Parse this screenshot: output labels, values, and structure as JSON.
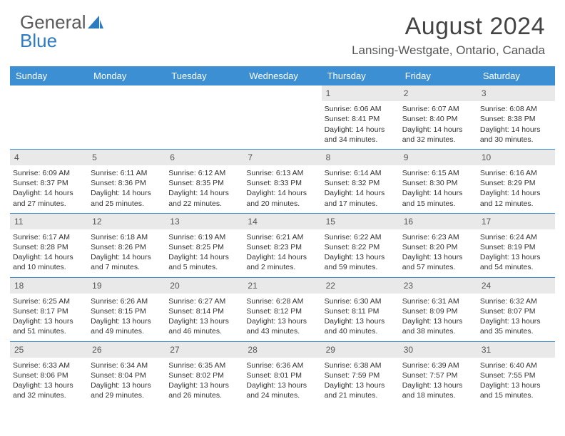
{
  "logo": {
    "word1": "General",
    "word2": "Blue"
  },
  "header": {
    "monthTitle": "August 2024",
    "location": "Lansing-Westgate, Ontario, Canada"
  },
  "colors": {
    "headerBar": "#3d8fd3",
    "dayNumBg": "#e9e9e9",
    "ruleLine": "#3d8fd3",
    "logoGray": "#5a5a5a",
    "logoBlue": "#2d7bc0"
  },
  "dayNames": [
    "Sunday",
    "Monday",
    "Tuesday",
    "Wednesday",
    "Thursday",
    "Friday",
    "Saturday"
  ],
  "weeks": [
    [
      {
        "empty": true
      },
      {
        "empty": true
      },
      {
        "empty": true
      },
      {
        "empty": true
      },
      {
        "day": "1",
        "sunrise": "Sunrise: 6:06 AM",
        "sunset": "Sunset: 8:41 PM",
        "daylight1": "Daylight: 14 hours",
        "daylight2": "and 34 minutes."
      },
      {
        "day": "2",
        "sunrise": "Sunrise: 6:07 AM",
        "sunset": "Sunset: 8:40 PM",
        "daylight1": "Daylight: 14 hours",
        "daylight2": "and 32 minutes."
      },
      {
        "day": "3",
        "sunrise": "Sunrise: 6:08 AM",
        "sunset": "Sunset: 8:38 PM",
        "daylight1": "Daylight: 14 hours",
        "daylight2": "and 30 minutes."
      }
    ],
    [
      {
        "day": "4",
        "sunrise": "Sunrise: 6:09 AM",
        "sunset": "Sunset: 8:37 PM",
        "daylight1": "Daylight: 14 hours",
        "daylight2": "and 27 minutes."
      },
      {
        "day": "5",
        "sunrise": "Sunrise: 6:11 AM",
        "sunset": "Sunset: 8:36 PM",
        "daylight1": "Daylight: 14 hours",
        "daylight2": "and 25 minutes."
      },
      {
        "day": "6",
        "sunrise": "Sunrise: 6:12 AM",
        "sunset": "Sunset: 8:35 PM",
        "daylight1": "Daylight: 14 hours",
        "daylight2": "and 22 minutes."
      },
      {
        "day": "7",
        "sunrise": "Sunrise: 6:13 AM",
        "sunset": "Sunset: 8:33 PM",
        "daylight1": "Daylight: 14 hours",
        "daylight2": "and 20 minutes."
      },
      {
        "day": "8",
        "sunrise": "Sunrise: 6:14 AM",
        "sunset": "Sunset: 8:32 PM",
        "daylight1": "Daylight: 14 hours",
        "daylight2": "and 17 minutes."
      },
      {
        "day": "9",
        "sunrise": "Sunrise: 6:15 AM",
        "sunset": "Sunset: 8:30 PM",
        "daylight1": "Daylight: 14 hours",
        "daylight2": "and 15 minutes."
      },
      {
        "day": "10",
        "sunrise": "Sunrise: 6:16 AM",
        "sunset": "Sunset: 8:29 PM",
        "daylight1": "Daylight: 14 hours",
        "daylight2": "and 12 minutes."
      }
    ],
    [
      {
        "day": "11",
        "sunrise": "Sunrise: 6:17 AM",
        "sunset": "Sunset: 8:28 PM",
        "daylight1": "Daylight: 14 hours",
        "daylight2": "and 10 minutes."
      },
      {
        "day": "12",
        "sunrise": "Sunrise: 6:18 AM",
        "sunset": "Sunset: 8:26 PM",
        "daylight1": "Daylight: 14 hours",
        "daylight2": "and 7 minutes."
      },
      {
        "day": "13",
        "sunrise": "Sunrise: 6:19 AM",
        "sunset": "Sunset: 8:25 PM",
        "daylight1": "Daylight: 14 hours",
        "daylight2": "and 5 minutes."
      },
      {
        "day": "14",
        "sunrise": "Sunrise: 6:21 AM",
        "sunset": "Sunset: 8:23 PM",
        "daylight1": "Daylight: 14 hours",
        "daylight2": "and 2 minutes."
      },
      {
        "day": "15",
        "sunrise": "Sunrise: 6:22 AM",
        "sunset": "Sunset: 8:22 PM",
        "daylight1": "Daylight: 13 hours",
        "daylight2": "and 59 minutes."
      },
      {
        "day": "16",
        "sunrise": "Sunrise: 6:23 AM",
        "sunset": "Sunset: 8:20 PM",
        "daylight1": "Daylight: 13 hours",
        "daylight2": "and 57 minutes."
      },
      {
        "day": "17",
        "sunrise": "Sunrise: 6:24 AM",
        "sunset": "Sunset: 8:19 PM",
        "daylight1": "Daylight: 13 hours",
        "daylight2": "and 54 minutes."
      }
    ],
    [
      {
        "day": "18",
        "sunrise": "Sunrise: 6:25 AM",
        "sunset": "Sunset: 8:17 PM",
        "daylight1": "Daylight: 13 hours",
        "daylight2": "and 51 minutes."
      },
      {
        "day": "19",
        "sunrise": "Sunrise: 6:26 AM",
        "sunset": "Sunset: 8:15 PM",
        "daylight1": "Daylight: 13 hours",
        "daylight2": "and 49 minutes."
      },
      {
        "day": "20",
        "sunrise": "Sunrise: 6:27 AM",
        "sunset": "Sunset: 8:14 PM",
        "daylight1": "Daylight: 13 hours",
        "daylight2": "and 46 minutes."
      },
      {
        "day": "21",
        "sunrise": "Sunrise: 6:28 AM",
        "sunset": "Sunset: 8:12 PM",
        "daylight1": "Daylight: 13 hours",
        "daylight2": "and 43 minutes."
      },
      {
        "day": "22",
        "sunrise": "Sunrise: 6:30 AM",
        "sunset": "Sunset: 8:11 PM",
        "daylight1": "Daylight: 13 hours",
        "daylight2": "and 40 minutes."
      },
      {
        "day": "23",
        "sunrise": "Sunrise: 6:31 AM",
        "sunset": "Sunset: 8:09 PM",
        "daylight1": "Daylight: 13 hours",
        "daylight2": "and 38 minutes."
      },
      {
        "day": "24",
        "sunrise": "Sunrise: 6:32 AM",
        "sunset": "Sunset: 8:07 PM",
        "daylight1": "Daylight: 13 hours",
        "daylight2": "and 35 minutes."
      }
    ],
    [
      {
        "day": "25",
        "sunrise": "Sunrise: 6:33 AM",
        "sunset": "Sunset: 8:06 PM",
        "daylight1": "Daylight: 13 hours",
        "daylight2": "and 32 minutes."
      },
      {
        "day": "26",
        "sunrise": "Sunrise: 6:34 AM",
        "sunset": "Sunset: 8:04 PM",
        "daylight1": "Daylight: 13 hours",
        "daylight2": "and 29 minutes."
      },
      {
        "day": "27",
        "sunrise": "Sunrise: 6:35 AM",
        "sunset": "Sunset: 8:02 PM",
        "daylight1": "Daylight: 13 hours",
        "daylight2": "and 26 minutes."
      },
      {
        "day": "28",
        "sunrise": "Sunrise: 6:36 AM",
        "sunset": "Sunset: 8:01 PM",
        "daylight1": "Daylight: 13 hours",
        "daylight2": "and 24 minutes."
      },
      {
        "day": "29",
        "sunrise": "Sunrise: 6:38 AM",
        "sunset": "Sunset: 7:59 PM",
        "daylight1": "Daylight: 13 hours",
        "daylight2": "and 21 minutes."
      },
      {
        "day": "30",
        "sunrise": "Sunrise: 6:39 AM",
        "sunset": "Sunset: 7:57 PM",
        "daylight1": "Daylight: 13 hours",
        "daylight2": "and 18 minutes."
      },
      {
        "day": "31",
        "sunrise": "Sunrise: 6:40 AM",
        "sunset": "Sunset: 7:55 PM",
        "daylight1": "Daylight: 13 hours",
        "daylight2": "and 15 minutes."
      }
    ]
  ]
}
